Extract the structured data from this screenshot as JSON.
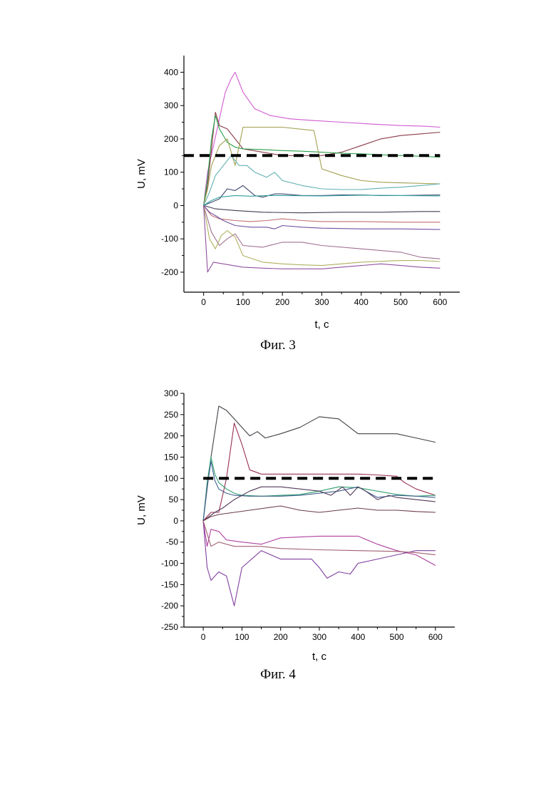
{
  "chart_data": [
    {
      "type": "line",
      "caption": "Фиг. 3",
      "xlabel": "t, c",
      "ylabel": "U, mV",
      "xlim": [
        -50,
        650
      ],
      "ylim": [
        -260,
        450
      ],
      "xticks": [
        0,
        100,
        200,
        300,
        400,
        500,
        600
      ],
      "yticks": [
        -200,
        -100,
        0,
        100,
        200,
        300,
        400
      ],
      "threshold": {
        "value": 150,
        "x_range": [
          -50,
          600
        ],
        "style": "dashed",
        "color": "#000000"
      },
      "series": [
        {
          "color": "#d05ad0",
          "x": [
            0,
            10,
            25,
            40,
            55,
            70,
            80,
            100,
            130,
            170,
            220,
            280,
            350,
            420,
            500,
            560,
            600
          ],
          "y": [
            0,
            100,
            180,
            260,
            340,
            380,
            400,
            340,
            290,
            270,
            260,
            255,
            250,
            245,
            240,
            238,
            235
          ]
        },
        {
          "color": "#8a3a4a",
          "x": [
            0,
            10,
            20,
            30,
            40,
            60,
            80,
            100,
            150,
            200,
            250,
            300,
            350,
            400,
            450,
            500,
            550,
            600
          ],
          "y": [
            0,
            60,
            170,
            280,
            240,
            230,
            200,
            170,
            160,
            150,
            150,
            150,
            160,
            180,
            200,
            210,
            215,
            220
          ]
        },
        {
          "color": "#2aa04a",
          "x": [
            0,
            10,
            20,
            30,
            40,
            60,
            80,
            100,
            150,
            200,
            250,
            300,
            350,
            400,
            450,
            500,
            550,
            600
          ],
          "y": [
            0,
            80,
            200,
            270,
            230,
            190,
            175,
            170,
            168,
            165,
            163,
            160,
            157,
            155,
            152,
            150,
            148,
            145
          ]
        },
        {
          "color": "#a0a050",
          "x": [
            0,
            10,
            20,
            40,
            60,
            80,
            100,
            150,
            200,
            280,
            300,
            350,
            400,
            450,
            500,
            600
          ],
          "y": [
            0,
            50,
            120,
            180,
            200,
            120,
            235,
            235,
            235,
            225,
            110,
            90,
            75,
            70,
            68,
            65
          ]
        },
        {
          "color": "#60b0b0",
          "x": [
            0,
            15,
            30,
            50,
            70,
            90,
            110,
            130,
            160,
            180,
            200,
            250,
            300,
            350,
            400,
            450,
            500,
            550,
            600
          ],
          "y": [
            0,
            40,
            90,
            120,
            150,
            120,
            120,
            100,
            85,
            100,
            75,
            60,
            50,
            48,
            48,
            52,
            55,
            60,
            65
          ]
        },
        {
          "color": "#404a70",
          "x": [
            0,
            20,
            40,
            60,
            80,
            100,
            130,
            150,
            180,
            200,
            250,
            300,
            350,
            400,
            450,
            500,
            550,
            600
          ],
          "y": [
            0,
            10,
            20,
            50,
            45,
            60,
            30,
            25,
            35,
            35,
            30,
            30,
            32,
            32,
            30,
            30,
            31,
            32
          ]
        },
        {
          "color": "#30a0a0",
          "x": [
            0,
            20,
            40,
            80,
            120,
            160,
            200,
            300,
            400,
            500,
            600
          ],
          "y": [
            0,
            15,
            25,
            30,
            28,
            30,
            30,
            29,
            31,
            30,
            29
          ]
        },
        {
          "color": "#404050",
          "x": [
            0,
            30,
            80,
            150,
            250,
            350,
            450,
            550,
            600
          ],
          "y": [
            0,
            -10,
            -15,
            -20,
            -22,
            -20,
            -20,
            -18,
            -18
          ]
        },
        {
          "color": "#c07070",
          "x": [
            0,
            20,
            40,
            80,
            120,
            160,
            200,
            250,
            300,
            400,
            500,
            600
          ],
          "y": [
            0,
            -30,
            -40,
            -45,
            -48,
            -45,
            -40,
            -45,
            -48,
            -48,
            -50,
            -50
          ]
        },
        {
          "color": "#7050a0",
          "x": [
            0,
            15,
            30,
            50,
            80,
            120,
            160,
            180,
            200,
            250,
            300,
            400,
            500,
            600
          ],
          "y": [
            0,
            -20,
            -30,
            -45,
            -60,
            -65,
            -65,
            -70,
            -60,
            -65,
            -68,
            -70,
            -70,
            -72
          ]
        },
        {
          "color": "#a07090",
          "x": [
            0,
            20,
            40,
            60,
            80,
            100,
            150,
            200,
            250,
            300,
            400,
            500,
            550,
            600
          ],
          "y": [
            0,
            -80,
            -120,
            -100,
            -85,
            -120,
            -125,
            -110,
            -110,
            -120,
            -130,
            -140,
            -155,
            -160
          ]
        },
        {
          "color": "#b0b060",
          "x": [
            0,
            15,
            30,
            45,
            60,
            80,
            100,
            150,
            200,
            250,
            300,
            400,
            500,
            550,
            600
          ],
          "y": [
            0,
            -100,
            -130,
            -90,
            -75,
            -95,
            -150,
            -170,
            -175,
            -178,
            -180,
            -170,
            -165,
            -165,
            -168
          ]
        },
        {
          "color": "#9050a0",
          "x": [
            0,
            10,
            25,
            50,
            100,
            150,
            200,
            250,
            300,
            350,
            400,
            450,
            500,
            550,
            600
          ],
          "y": [
            0,
            -200,
            -170,
            -175,
            -185,
            -188,
            -190,
            -190,
            -190,
            -185,
            -180,
            -175,
            -180,
            -185,
            -188
          ]
        }
      ]
    },
    {
      "type": "line",
      "caption": "Фиг. 4",
      "xlabel": "t, c",
      "ylabel": "U, mV",
      "xlim": [
        -50,
        650
      ],
      "ylim": [
        -250,
        300
      ],
      "xticks": [
        0,
        100,
        200,
        300,
        400,
        500,
        600
      ],
      "yticks": [
        -250,
        -200,
        -150,
        -100,
        -50,
        0,
        50,
        100,
        150,
        200,
        250,
        300
      ],
      "threshold": {
        "value": 100,
        "x_range": [
          0,
          600
        ],
        "style": "dashed",
        "color": "#000000"
      },
      "series": [
        {
          "color": "#404048",
          "x": [
            0,
            20,
            40,
            60,
            80,
            100,
            120,
            140,
            160,
            200,
            250,
            300,
            350,
            400,
            450,
            500,
            550,
            600
          ],
          "y": [
            0,
            150,
            270,
            260,
            240,
            220,
            200,
            210,
            195,
            205,
            220,
            245,
            240,
            205,
            205,
            205,
            195,
            185
          ]
        },
        {
          "color": "#9a3050",
          "x": [
            0,
            20,
            40,
            60,
            80,
            100,
            120,
            150,
            200,
            250,
            300,
            350,
            400,
            450,
            500,
            520,
            550,
            600
          ],
          "y": [
            0,
            20,
            20,
            100,
            230,
            180,
            120,
            110,
            110,
            110,
            110,
            110,
            110,
            108,
            105,
            90,
            75,
            60
          ]
        },
        {
          "color": "#30a070",
          "x": [
            0,
            10,
            20,
            30,
            40,
            60,
            80,
            100,
            150,
            200,
            250,
            300,
            350,
            400,
            450,
            500,
            550,
            600
          ],
          "y": [
            0,
            90,
            150,
            110,
            90,
            75,
            65,
            60,
            58,
            60,
            62,
            70,
            80,
            78,
            70,
            62,
            58,
            60
          ]
        },
        {
          "color": "#406090",
          "x": [
            0,
            10,
            20,
            30,
            40,
            60,
            80,
            120,
            160,
            200,
            250,
            300,
            350,
            400,
            450,
            500,
            550,
            600
          ],
          "y": [
            0,
            80,
            140,
            95,
            75,
            65,
            60,
            58,
            58,
            58,
            60,
            65,
            70,
            80,
            55,
            60,
            58,
            55
          ]
        },
        {
          "color": "#503a5a",
          "x": [
            0,
            15,
            30,
            50,
            80,
            120,
            150,
            200,
            250,
            300,
            330,
            360,
            380,
            400,
            420,
            450,
            480,
            500,
            550,
            600
          ],
          "y": [
            0,
            10,
            20,
            30,
            50,
            70,
            80,
            80,
            75,
            70,
            60,
            80,
            60,
            80,
            70,
            50,
            60,
            55,
            50,
            45
          ]
        },
        {
          "color": "#6a3a4a",
          "x": [
            0,
            20,
            40,
            80,
            120,
            160,
            200,
            250,
            300,
            350,
            400,
            450,
            500,
            550,
            600
          ],
          "y": [
            0,
            10,
            15,
            20,
            25,
            30,
            35,
            25,
            20,
            25,
            30,
            25,
            25,
            22,
            20
          ]
        },
        {
          "color": "#b040a0",
          "x": [
            0,
            10,
            20,
            40,
            60,
            100,
            150,
            200,
            250,
            300,
            400,
            450,
            500,
            550,
            600
          ],
          "y": [
            0,
            -60,
            -20,
            -25,
            -45,
            -50,
            -55,
            -40,
            -38,
            -36,
            -36,
            -55,
            -70,
            -80,
            -105
          ]
        },
        {
          "color": "#8040a0",
          "x": [
            0,
            10,
            20,
            40,
            60,
            80,
            100,
            150,
            200,
            250,
            280,
            300,
            320,
            350,
            380,
            400,
            450,
            500,
            550,
            600
          ],
          "y": [
            0,
            -110,
            -140,
            -120,
            -130,
            -200,
            -110,
            -70,
            -90,
            -90,
            -90,
            -110,
            -135,
            -120,
            -125,
            -100,
            -90,
            -80,
            -70,
            -70
          ]
        },
        {
          "color": "#a06070",
          "x": [
            0,
            20,
            40,
            80,
            150,
            200,
            300,
            400,
            500,
            550,
            600
          ],
          "y": [
            0,
            -60,
            -50,
            -60,
            -60,
            -65,
            -68,
            -70,
            -72,
            -75,
            -80
          ]
        }
      ]
    }
  ]
}
